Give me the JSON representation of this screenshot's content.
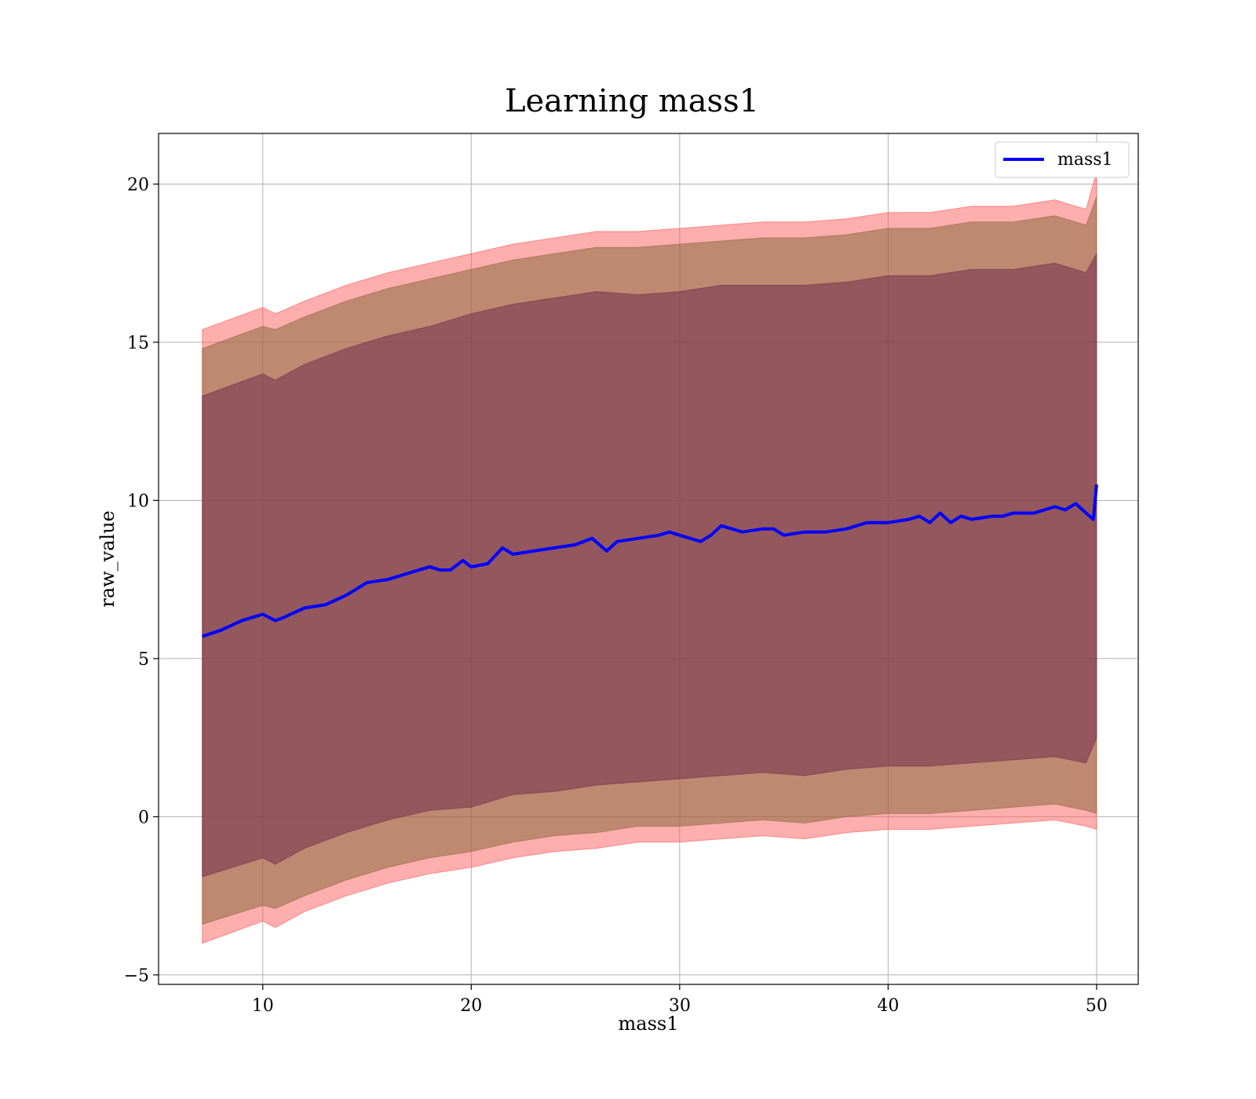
{
  "chart_data": {
    "type": "line",
    "title": "Learning mass1",
    "xlabel": "mass1",
    "ylabel": "raw_value",
    "xlim": [
      5,
      52
    ],
    "ylim": [
      -5.3,
      21.6
    ],
    "xticks": [
      10,
      20,
      30,
      40,
      50
    ],
    "yticks": [
      -5,
      0,
      5,
      10,
      15,
      20
    ],
    "ytick_labels": [
      "−5",
      "0",
      "5",
      "10",
      "15",
      "20"
    ],
    "grid": true,
    "legend_position": "top-right",
    "colors": {
      "line": "#0000ff",
      "band_outer": "#ff000055",
      "band_middle": "#8b6a3f",
      "band_inner": "#7a3f5a"
    },
    "series": [
      {
        "name": "mass1",
        "x": [
          7.1,
          8,
          9,
          10,
          10.6,
          11,
          12,
          13,
          14,
          15,
          16,
          17,
          18,
          18.5,
          19,
          19.6,
          20,
          20.8,
          21.5,
          22,
          23,
          24,
          25,
          25.8,
          26.5,
          27,
          28,
          29,
          29.5,
          30,
          31,
          31.5,
          32,
          32.5,
          33,
          34,
          34.5,
          35,
          36,
          37,
          38,
          39,
          40,
          41,
          41.5,
          42,
          42.5,
          43,
          43.5,
          44,
          45,
          45.5,
          46,
          47,
          47.5,
          48,
          48.5,
          49,
          49.5,
          49.85,
          50
        ],
        "y": [
          5.7,
          5.9,
          6.2,
          6.4,
          6.2,
          6.3,
          6.6,
          6.7,
          7.0,
          7.4,
          7.5,
          7.7,
          7.9,
          7.8,
          7.8,
          8.1,
          7.9,
          8.0,
          8.5,
          8.3,
          8.4,
          8.5,
          8.6,
          8.8,
          8.4,
          8.7,
          8.8,
          8.9,
          9.0,
          8.9,
          8.7,
          8.9,
          9.2,
          9.1,
          9.0,
          9.1,
          9.1,
          8.9,
          9.0,
          9.0,
          9.1,
          9.3,
          9.3,
          9.4,
          9.5,
          9.3,
          9.6,
          9.3,
          9.5,
          9.4,
          9.5,
          9.5,
          9.6,
          9.6,
          9.7,
          9.8,
          9.7,
          9.9,
          9.6,
          9.4,
          10.5
        ]
      }
    ],
    "bands": [
      {
        "name": "outer",
        "x": [
          7.1,
          10,
          10.6,
          12,
          14,
          16,
          18,
          20,
          22,
          24,
          26,
          28,
          30,
          32,
          34,
          36,
          38,
          40,
          42,
          44,
          46,
          48,
          49.5,
          50
        ],
        "upper": [
          15.4,
          16.1,
          15.9,
          16.3,
          16.8,
          17.2,
          17.5,
          17.8,
          18.1,
          18.3,
          18.5,
          18.5,
          18.6,
          18.7,
          18.8,
          18.8,
          18.9,
          19.1,
          19.1,
          19.3,
          19.3,
          19.5,
          19.2,
          20.4
        ],
        "lower": [
          -4.0,
          -3.3,
          -3.5,
          -3.0,
          -2.5,
          -2.1,
          -1.8,
          -1.6,
          -1.3,
          -1.1,
          -1.0,
          -0.8,
          -0.8,
          -0.7,
          -0.6,
          -0.7,
          -0.5,
          -0.4,
          -0.4,
          -0.3,
          -0.2,
          -0.1,
          -0.3,
          -0.4
        ]
      },
      {
        "name": "middle",
        "x": [
          7.1,
          10,
          10.6,
          12,
          14,
          16,
          18,
          20,
          22,
          24,
          26,
          28,
          30,
          32,
          34,
          36,
          38,
          40,
          42,
          44,
          46,
          48,
          49.5,
          50
        ],
        "upper": [
          14.8,
          15.5,
          15.4,
          15.8,
          16.3,
          16.7,
          17.0,
          17.3,
          17.6,
          17.8,
          18.0,
          18.0,
          18.1,
          18.2,
          18.3,
          18.3,
          18.4,
          18.6,
          18.6,
          18.8,
          18.8,
          19.0,
          18.7,
          19.6
        ],
        "lower": [
          -3.4,
          -2.8,
          -2.9,
          -2.5,
          -2.0,
          -1.6,
          -1.3,
          -1.1,
          -0.8,
          -0.6,
          -0.5,
          -0.3,
          -0.3,
          -0.2,
          -0.1,
          -0.2,
          0.0,
          0.1,
          0.1,
          0.2,
          0.3,
          0.4,
          0.2,
          0.1
        ]
      },
      {
        "name": "inner",
        "x": [
          7.1,
          10,
          10.6,
          12,
          14,
          16,
          18,
          20,
          22,
          24,
          26,
          28,
          30,
          32,
          34,
          36,
          38,
          40,
          42,
          44,
          46,
          48,
          49.5,
          50
        ],
        "upper": [
          13.3,
          14.0,
          13.8,
          14.3,
          14.8,
          15.2,
          15.5,
          15.9,
          16.2,
          16.4,
          16.6,
          16.5,
          16.6,
          16.8,
          16.8,
          16.8,
          16.9,
          17.1,
          17.1,
          17.3,
          17.3,
          17.5,
          17.2,
          17.8
        ],
        "lower": [
          -1.9,
          -1.3,
          -1.5,
          -1.0,
          -0.5,
          -0.1,
          0.2,
          0.3,
          0.7,
          0.8,
          1.0,
          1.1,
          1.2,
          1.3,
          1.4,
          1.3,
          1.5,
          1.6,
          1.6,
          1.7,
          1.8,
          1.9,
          1.7,
          2.5
        ]
      }
    ]
  }
}
